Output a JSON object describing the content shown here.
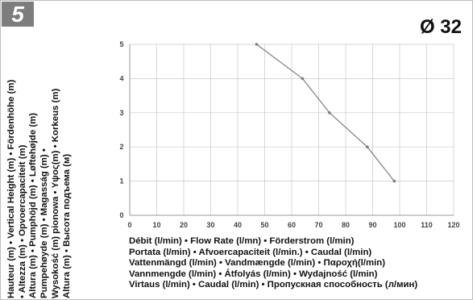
{
  "badge": "5",
  "diameter_label": "Ø 32",
  "y_axis_lines": [
    "Hauteur (m) • Vertical Height (m) • Fördenhöhe (m)",
    "• Altezza (m) • Opvoercapaciteit (m)",
    "Altura (m) • Pumphöjd (m) • Løftehøjde (m)",
    "Pumpehøyde (m) • Magasság (m) •",
    "Wysokość (m) pionowa • Υψος(m) • Korkeus (m)",
    "Altura (m) • Высота подъема (м)"
  ],
  "x_axis_lines": [
    "Débit (l/min) • Flow Rate (l/mn) • Förderstrom (l/min)",
    "Portata (l/min) • Afvoercapaciteit (l/min.) • Caudal (l/min)",
    "Vattenmängd (l/min) • Vandmængde (l/min) • Παροχή(l/min)",
    "Vannmengde (l/min) • Átfolyás (l/min) • Wydajność (l/min)",
    "Virtaus (l/min) • Caudal (l/min) • Пропускная способность (л/мин)"
  ],
  "chart_data": {
    "type": "line",
    "x_ticks": [
      0,
      10,
      20,
      30,
      40,
      50,
      60,
      70,
      80,
      90,
      100,
      110,
      120
    ],
    "y_ticks": [
      0,
      1,
      2,
      3,
      4,
      5
    ],
    "xlim": [
      0,
      120
    ],
    "ylim": [
      0,
      5
    ],
    "grid": true,
    "series": [
      {
        "x": [
          47,
          64,
          74,
          88,
          98
        ],
        "y": [
          5,
          4,
          3,
          2,
          1
        ]
      }
    ],
    "colors": {
      "line": "#7f7f7f",
      "grid": "#c8c8c8",
      "axis": "#9a9a9a"
    }
  }
}
